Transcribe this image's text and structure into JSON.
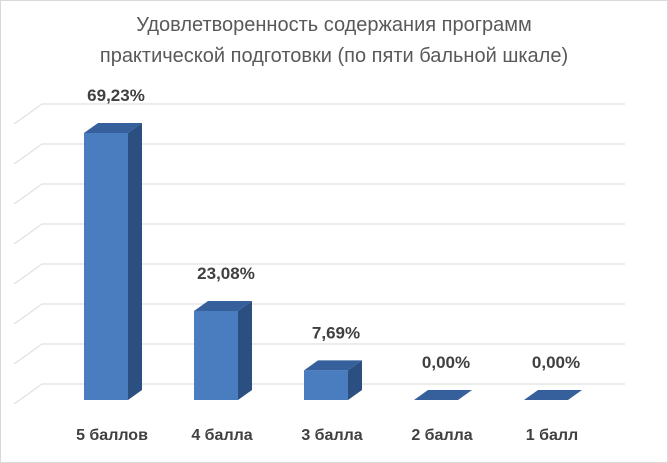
{
  "chart_data": {
    "type": "bar",
    "style": "3d-column",
    "title_lines": [
      "Удовлетворенность содержания программ",
      "практической подготовки (по пяти бальной шкале)"
    ],
    "categories": [
      "5 баллов",
      "4 балла",
      "3  балла",
      "2 балла",
      "1 балл"
    ],
    "values": [
      69.23,
      23.08,
      7.69,
      0.0,
      0.0
    ],
    "data_labels": [
      "69,23%",
      "23,08%",
      "7,69%",
      "0,00%",
      "0,00%"
    ],
    "ylim": [
      0,
      70
    ],
    "grid": true,
    "legend": "none",
    "colors": {
      "bar_front": "#4a7dc0",
      "bar_side": "#2b4f80",
      "bar_top": "#35609c",
      "grid": "#d9d9d9",
      "text": "#404040",
      "title": "#595959"
    }
  }
}
